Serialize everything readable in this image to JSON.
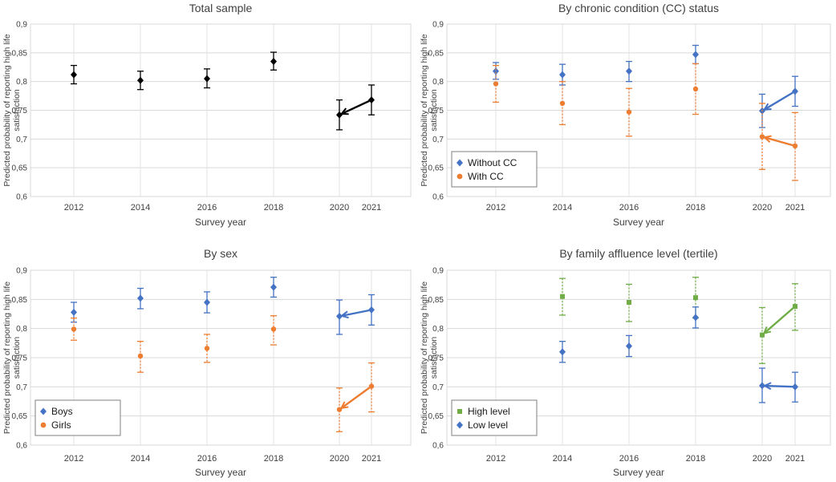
{
  "charts": [
    {
      "type": "scatter",
      "title": "Total sample",
      "xlabel": "Survey year",
      "ylabel_lines": [
        "Predicted probability of reporting high life",
        "satisfaction"
      ],
      "categories": [
        "2012",
        "2014",
        "2016",
        "2018",
        "2020",
        "2021"
      ],
      "ylim": [
        0.6,
        0.9
      ],
      "yticks": [
        "0,6",
        "0,65",
        "0,7",
        "0,75",
        "0,8",
        "0,85",
        "0,9"
      ],
      "grid": true,
      "legend": null,
      "series": [
        {
          "name": "Total",
          "color": "#000000",
          "marker": "diamond",
          "dashed": false,
          "values": [
            0.812,
            0.802,
            0.805,
            0.835,
            0.742,
            0.768
          ],
          "lower": [
            0.796,
            0.786,
            0.789,
            0.82,
            0.716,
            0.742
          ],
          "upper": [
            0.828,
            0.818,
            0.822,
            0.851,
            0.768,
            0.794
          ]
        }
      ],
      "arrows": [
        {
          "color": "#000000",
          "from": [
            5,
            0.768
          ],
          "to": [
            4,
            0.742
          ]
        }
      ]
    },
    {
      "type": "scatter",
      "title": "By chronic condition (CC) status",
      "xlabel": "Survey year",
      "ylabel_lines": [
        "Predicted probability of reporting high life",
        "satisfaction"
      ],
      "categories": [
        "2012",
        "2014",
        "2016",
        "2018",
        "2020",
        "2021"
      ],
      "ylim": [
        0.6,
        0.9
      ],
      "yticks": [
        "0,6",
        "0,65",
        "0,7",
        "0,75",
        "0,8",
        "0,85",
        "0,9"
      ],
      "grid": true,
      "legend": {
        "position": "bottom-left",
        "items": [
          "Without CC",
          "With CC"
        ]
      },
      "series": [
        {
          "name": "Without CC",
          "color": "#4472C4",
          "marker": "diamond",
          "dashed": false,
          "values": [
            0.818,
            0.812,
            0.818,
            0.847,
            0.749,
            0.783
          ],
          "lower": [
            0.804,
            0.794,
            0.8,
            0.831,
            0.72,
            0.757
          ],
          "upper": [
            0.833,
            0.83,
            0.835,
            0.863,
            0.778,
            0.809
          ]
        },
        {
          "name": "With CC",
          "color": "#ED7D31",
          "marker": "circle",
          "dashed": true,
          "values": [
            0.796,
            0.762,
            0.747,
            0.787,
            0.704,
            0.688
          ],
          "lower": [
            0.764,
            0.725,
            0.705,
            0.743,
            0.647,
            0.628
          ],
          "upper": [
            0.828,
            0.8,
            0.788,
            0.831,
            0.762,
            0.746
          ]
        }
      ],
      "arrows": [
        {
          "color": "#4472C4",
          "from": [
            5,
            0.783
          ],
          "to": [
            4,
            0.749
          ]
        },
        {
          "color": "#ED7D31",
          "from": [
            5,
            0.688
          ],
          "to": [
            4,
            0.704
          ]
        }
      ]
    },
    {
      "type": "scatter",
      "title": "By sex",
      "xlabel": "Survey year",
      "ylabel_lines": [
        "Predicted probability of reporting high life",
        "satisfaction"
      ],
      "categories": [
        "2012",
        "2014",
        "2016",
        "2018",
        "2020",
        "2021"
      ],
      "ylim": [
        0.6,
        0.9
      ],
      "yticks": [
        "0,6",
        "0,65",
        "0,7",
        "0,75",
        "0,8",
        "0,85",
        "0,9"
      ],
      "grid": true,
      "legend": {
        "position": "bottom-left",
        "items": [
          "Boys",
          "Girls"
        ]
      },
      "series": [
        {
          "name": "Boys",
          "color": "#4472C4",
          "marker": "diamond",
          "dashed": false,
          "values": [
            0.828,
            0.852,
            0.845,
            0.871,
            0.821,
            0.832
          ],
          "lower": [
            0.811,
            0.834,
            0.827,
            0.854,
            0.79,
            0.806
          ],
          "upper": [
            0.845,
            0.869,
            0.863,
            0.888,
            0.849,
            0.858
          ]
        },
        {
          "name": "Girls",
          "color": "#ED7D31",
          "marker": "circle",
          "dashed": true,
          "values": [
            0.799,
            0.753,
            0.766,
            0.799,
            0.661,
            0.701
          ],
          "lower": [
            0.78,
            0.725,
            0.742,
            0.772,
            0.623,
            0.657
          ],
          "upper": [
            0.818,
            0.778,
            0.79,
            0.822,
            0.698,
            0.741
          ]
        }
      ],
      "arrows": [
        {
          "color": "#4472C4",
          "from": [
            5,
            0.832
          ],
          "to": [
            4,
            0.821
          ]
        },
        {
          "color": "#ED7D31",
          "from": [
            5,
            0.701
          ],
          "to": [
            4,
            0.661
          ]
        }
      ]
    },
    {
      "type": "scatter",
      "title": "By family affluence level (tertile)",
      "xlabel": "Survey year",
      "ylabel_lines": [
        "Predicted probability of reporting high life",
        "satisfaction"
      ],
      "categories": [
        "2012",
        "2014",
        "2016",
        "2018",
        "2020",
        "2021"
      ],
      "ylim": [
        0.6,
        0.9
      ],
      "yticks": [
        "0,6",
        "0,65",
        "0,7",
        "0,75",
        "0,8",
        "0,85",
        "0,9"
      ],
      "grid": true,
      "legend": {
        "position": "bottom-left",
        "items": [
          "High level",
          "Low level"
        ]
      },
      "series": [
        {
          "name": "High level",
          "color": "#70AD47",
          "marker": "square",
          "dashed": true,
          "values": [
            null,
            0.855,
            0.845,
            0.853,
            0.789,
            0.838
          ],
          "lower": [
            null,
            0.823,
            0.812,
            0.818,
            0.74,
            0.797
          ],
          "upper": [
            null,
            0.886,
            0.876,
            0.888,
            0.836,
            0.877
          ]
        },
        {
          "name": "Low level",
          "color": "#4472C4",
          "marker": "diamond",
          "dashed": false,
          "values": [
            null,
            0.76,
            0.77,
            0.819,
            0.702,
            0.7
          ],
          "lower": [
            null,
            0.742,
            0.752,
            0.801,
            0.673,
            0.674
          ],
          "upper": [
            null,
            0.778,
            0.788,
            0.837,
            0.732,
            0.725
          ]
        }
      ],
      "arrows": [
        {
          "color": "#70AD47",
          "from": [
            5,
            0.838
          ],
          "to": [
            4,
            0.789
          ]
        },
        {
          "color": "#4472C4",
          "from": [
            5,
            0.7
          ],
          "to": [
            4,
            0.702
          ]
        }
      ]
    }
  ]
}
